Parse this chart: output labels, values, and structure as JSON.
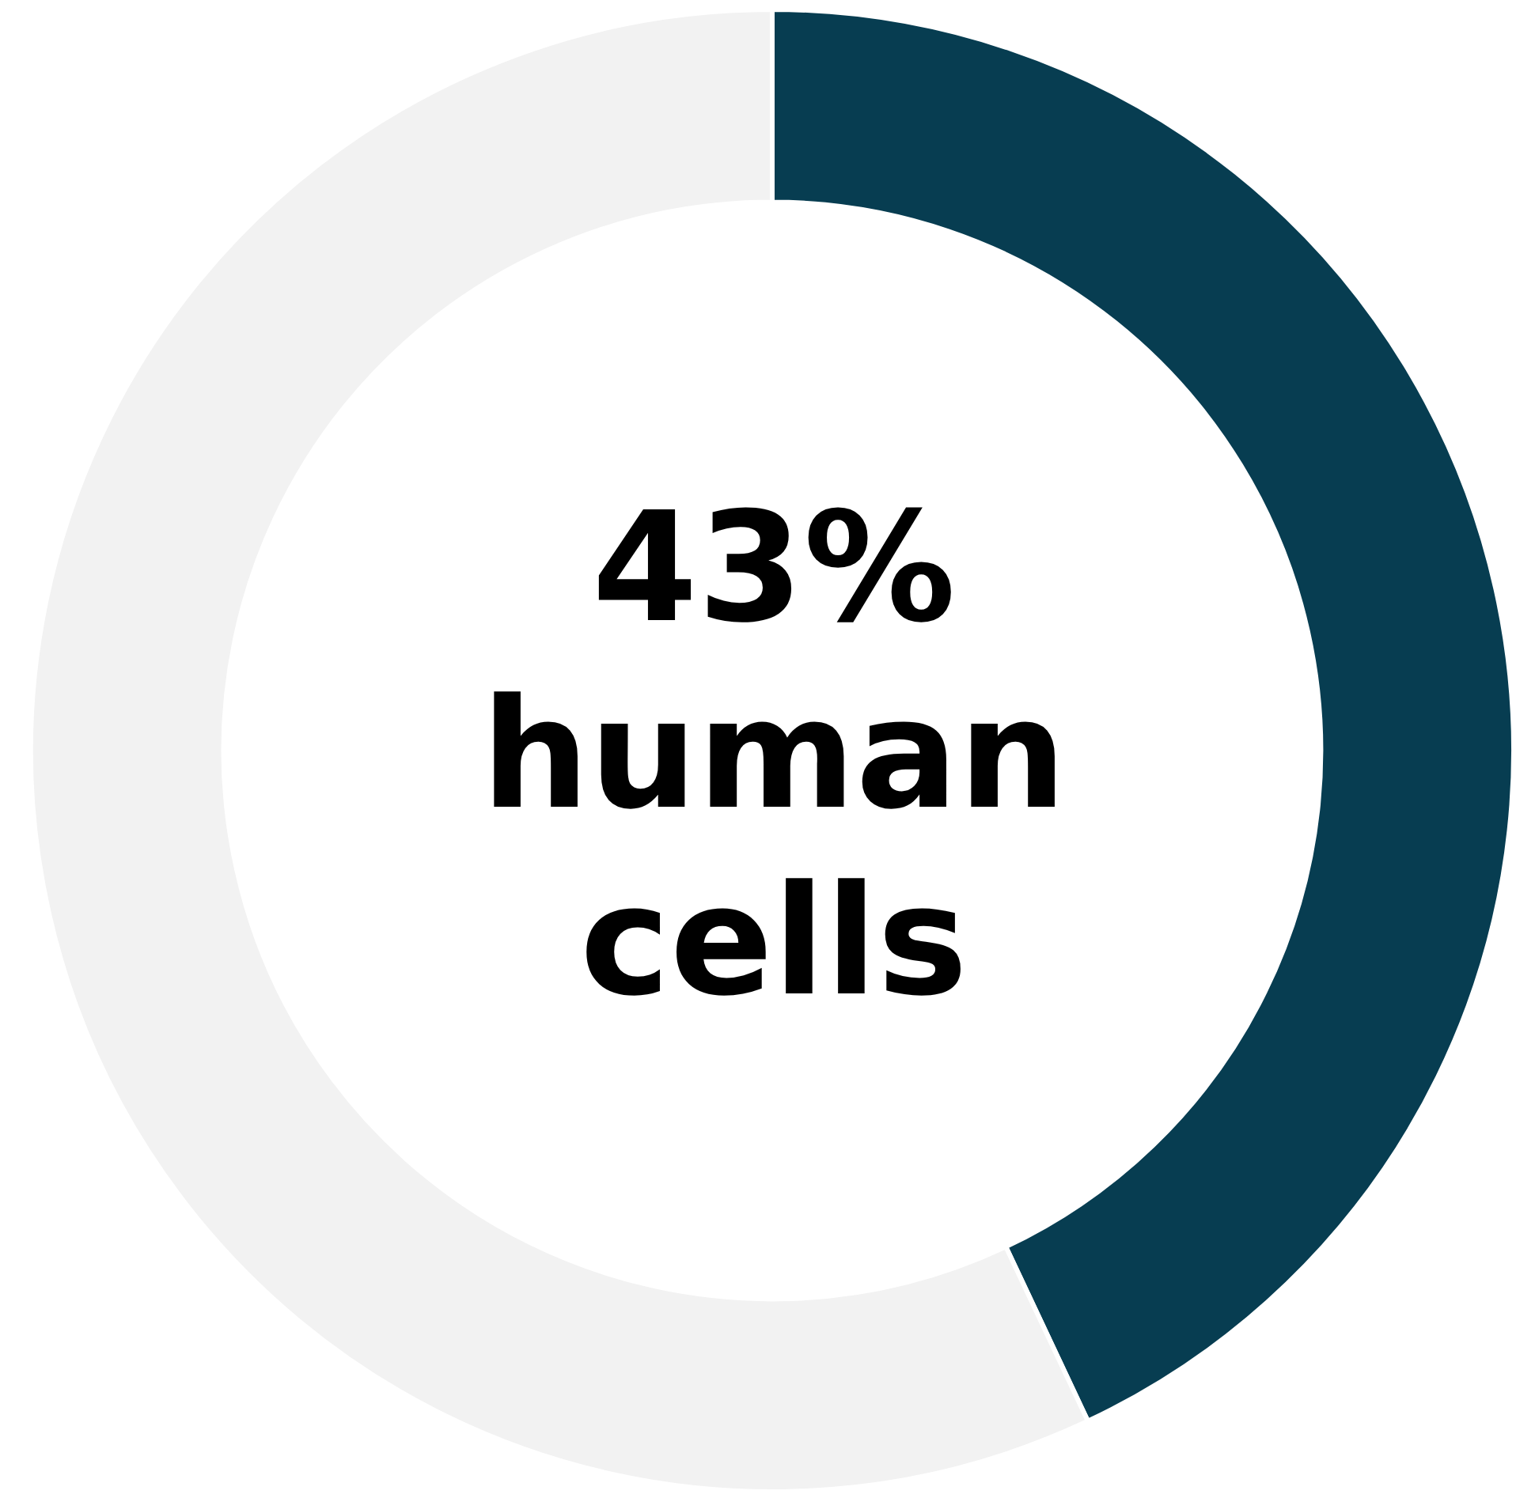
{
  "chart_data": {
    "type": "donut",
    "categories": [
      null,
      null
    ],
    "values": [
      43,
      57
    ],
    "colors": [
      "#073d51",
      "#f2f2f2"
    ],
    "annotations": [
      "43% human cells"
    ],
    "legend": false
  }
}
